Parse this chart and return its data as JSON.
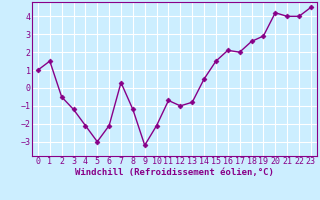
{
  "x": [
    0,
    1,
    2,
    3,
    4,
    5,
    6,
    7,
    8,
    9,
    10,
    11,
    12,
    13,
    14,
    15,
    16,
    17,
    18,
    19,
    20,
    21,
    22,
    23
  ],
  "y": [
    1.0,
    1.5,
    -0.5,
    -1.2,
    -2.1,
    -3.0,
    -2.1,
    0.3,
    -1.2,
    -3.2,
    -2.1,
    -0.7,
    -1.0,
    -0.8,
    0.5,
    1.5,
    2.1,
    2.0,
    2.6,
    2.9,
    4.2,
    4.0,
    4.0,
    4.5
  ],
  "line_color": "#880088",
  "marker": "D",
  "marker_size": 2.5,
  "bg_color": "#cceeff",
  "grid_color": "#ffffff",
  "xlabel": "Windchill (Refroidissement éolien,°C)",
  "xlabel_fontsize": 6.5,
  "tick_fontsize": 6.0,
  "ylim": [
    -3.8,
    4.8
  ],
  "yticks": [
    -3,
    -2,
    -1,
    0,
    1,
    2,
    3,
    4
  ],
  "xticks": [
    0,
    1,
    2,
    3,
    4,
    5,
    6,
    7,
    8,
    9,
    10,
    11,
    12,
    13,
    14,
    15,
    16,
    17,
    18,
    19,
    20,
    21,
    22,
    23
  ],
  "line_width": 1.0
}
